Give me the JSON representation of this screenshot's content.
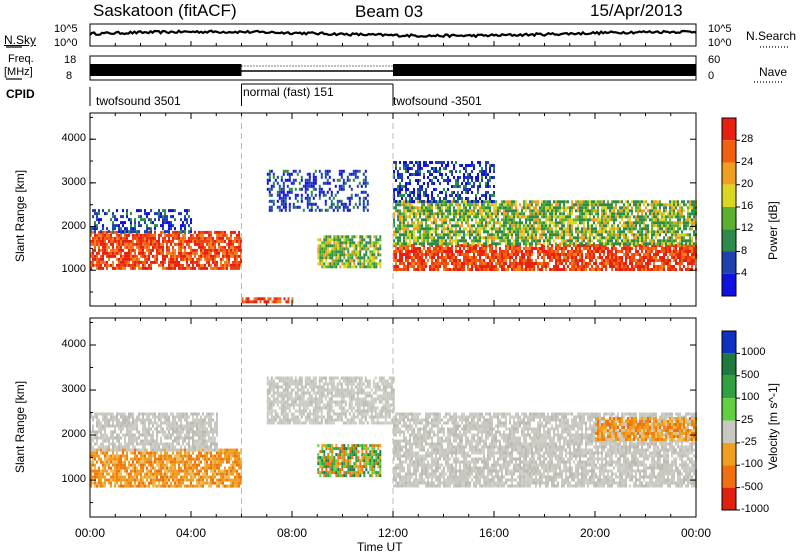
{
  "header": {
    "title": "Saskatoon (fitACF)",
    "beam": "Beam 03",
    "date": "15/Apr/2013"
  },
  "left_labels": {
    "nsky": "N.Sky",
    "freq": "Freq.",
    "freq_unit": "[MHz]",
    "cpid": "CPID"
  },
  "right_labels": {
    "nsearch": "N.Search",
    "nave": "Nave"
  },
  "noise_panel": {
    "y_top": "10^5",
    "y_bottom": "10^0",
    "right_top": "10^5",
    "right_bottom": "10^0"
  },
  "freq_panel": {
    "y_top": "18",
    "y_bottom": "8",
    "right_top": "60",
    "right_bottom": "0"
  },
  "cpid_segments": [
    {
      "label": "twofsound 3501",
      "start": 0,
      "end": 6
    },
    {
      "label": "normal (fast) 151",
      "start": 6,
      "end": 12
    },
    {
      "label": "twofsound -3501",
      "start": 12,
      "end": 24
    }
  ],
  "chart_data": [
    {
      "type": "heatmap",
      "title": "",
      "xlabel": "Time UT",
      "ylabel": "Slant Range [km]",
      "xlim": [
        0,
        24
      ],
      "ylim": [
        180,
        4600
      ],
      "x_ticks": [
        "00:00",
        "04:00",
        "08:00",
        "12:00",
        "16:00",
        "20:00",
        "00:00"
      ],
      "y_ticks": [
        "1000",
        "2000",
        "3000",
        "4000"
      ],
      "colorbar_label": "Power [dB]",
      "colorbar_ticks": [
        "4",
        "8",
        "12",
        "16",
        "20",
        "24",
        "28"
      ],
      "colorbar_colors": [
        "#1010e0",
        "#2040b0",
        "#2e8a4a",
        "#5cb030",
        "#d8d820",
        "#f0a020",
        "#f06010",
        "#e82010"
      ],
      "bands": [
        {
          "t0": 0,
          "t1": 6,
          "r0": 1050,
          "r1": 1900,
          "kind": "strong"
        },
        {
          "t0": 0,
          "t1": 4,
          "r0": 1900,
          "r1": 2400,
          "kind": "weak"
        },
        {
          "t0": 6,
          "t1": 8,
          "r0": 250,
          "r1": 380,
          "kind": "strong"
        },
        {
          "t0": 7,
          "t1": 11,
          "r0": 2400,
          "r1": 3300,
          "kind": "weak"
        },
        {
          "t0": 9,
          "t1": 11.5,
          "r0": 1100,
          "r1": 1800,
          "kind": "medium"
        },
        {
          "t0": 12,
          "t1": 24,
          "r0": 1000,
          "r1": 1600,
          "kind": "strong"
        },
        {
          "t0": 12,
          "t1": 24,
          "r0": 1600,
          "r1": 2600,
          "kind": "medium"
        },
        {
          "t0": 12,
          "t1": 16,
          "r0": 2600,
          "r1": 3500,
          "kind": "weak"
        }
      ]
    },
    {
      "type": "heatmap",
      "title": "",
      "xlabel": "Time UT",
      "ylabel": "Slant Range [km]",
      "xlim": [
        0,
        24
      ],
      "ylim": [
        180,
        4600
      ],
      "x_ticks": [
        "00:00",
        "04:00",
        "08:00",
        "12:00",
        "16:00",
        "20:00",
        "00:00"
      ],
      "y_ticks": [
        "1000",
        "2000",
        "3000",
        "4000"
      ],
      "colorbar_label": "Velocity [m s^-1]",
      "colorbar_ticks": [
        "1000",
        "500",
        "100",
        "25",
        "-25",
        "-100",
        "-500",
        "-1000"
      ],
      "colorbar_colors": [
        "#1030c0",
        "#207a40",
        "#30a040",
        "#60d040",
        "#c8c8c0",
        "#f0a020",
        "#f07010",
        "#e02010"
      ],
      "bands": [
        {
          "t0": 0,
          "t1": 6,
          "r0": 850,
          "r1": 1700,
          "kind": "negative"
        },
        {
          "t0": 0,
          "t1": 5,
          "r0": 1700,
          "r1": 2500,
          "kind": "ground"
        },
        {
          "t0": 9,
          "t1": 11.5,
          "r0": 1100,
          "r1": 1800,
          "kind": "mixed"
        },
        {
          "t0": 7,
          "t1": 12,
          "r0": 2300,
          "r1": 3300,
          "kind": "ground"
        },
        {
          "t0": 12,
          "t1": 24,
          "r0": 900,
          "r1": 2500,
          "kind": "ground"
        },
        {
          "t0": 20,
          "t1": 24,
          "r0": 1900,
          "r1": 2400,
          "kind": "negative"
        }
      ]
    }
  ]
}
